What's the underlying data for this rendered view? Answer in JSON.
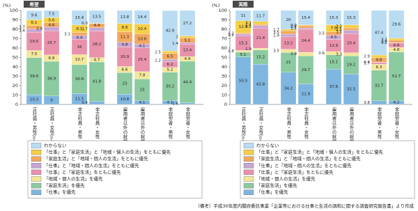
{
  "chart_data": [
    {
      "type": "bar",
      "stacked": true,
      "title": "希望",
      "y_label": "(%)",
      "categories": [
        "正社員・男性(n=1500)",
        "正社員・女性(n=1500)",
        "非正社員・男性",
        "非正社員・女性",
        "雇用者以外の就労者・男性",
        "雇用者以外の就労者・女性",
        "非就労者・男性",
        "非就労者・女性"
      ],
      "ylim": [
        0,
        100
      ],
      "yticks": [
        0,
        10,
        20,
        30,
        40,
        50,
        60,
        70,
        80,
        90,
        100
      ],
      "series": [
        {
          "name": "「仕事」を優先",
          "color": "#7fb6df",
          "values": [
            10.3,
            9.0,
            11.5,
            3.4,
            10.8,
            4.1,
            4.1,
            1.6
          ]
        },
        {
          "name": "「家庭生活」を優先",
          "color": "#8ccaa0",
          "values": [
            39.6,
            36.9,
            30.8,
            41.8,
            23.0,
            23.0,
            30.2,
            44.4
          ]
        },
        {
          "name": "「地域・個人の生活」を優先",
          "color": "#f3e79a",
          "values": [
            7.5,
            6.8,
            10.7,
            4.7,
            6.6,
            7.8,
            5.2,
            4.9
          ]
        },
        {
          "name": "「仕事」と「家庭生活」をともに優先",
          "color": "#e992ac",
          "values": [
            19.5,
            25.7,
            16.0,
            28.2,
            20.9,
            25.4,
            6.2,
            13.4
          ]
        },
        {
          "name": "「仕事」と「地域・個人の生活」をともに優先",
          "color": "#c7a6d2",
          "values": [
            3.4,
            3.9,
            4.4,
            3.7,
            4.8,
            4.1,
            2.2,
            1.4
          ]
        },
        {
          "name": "「家庭生活」と「地域・個人の生活」をともに優先",
          "color": "#f2a860",
          "values": [
            3.7,
            4.6,
            3.1,
            4.4,
            11.3,
            10.8,
            6.5,
            5.1
          ]
        },
        {
          "name": "「仕事」と「家庭生活」と「地域・個人の生活」をともに優先",
          "color": "#f5cf45",
          "values": [
            6.1,
            5.6,
            8.1,
            0.3,
            8.8,
            10.4,
            2.5,
            2.0
          ]
        },
        {
          "name": "わからない",
          "color": "#b9dcf2",
          "values": [
            9.6,
            7.5,
            15.4,
            13.5,
            13.8,
            14.4,
            42.9,
            27.2
          ]
        }
      ]
    },
    {
      "type": "bar",
      "stacked": true,
      "title": "実際",
      "y_label": "(%)",
      "categories": [
        "正社員・男性(n=1500)",
        "正社員・女性(n=1500)",
        "非正社員・男性",
        "非正社員・女性",
        "雇用者以外の就労者・男性",
        "雇用者以外の就労者・女性",
        "非就労者・男性",
        "非就労者・女性"
      ],
      "ylim": [
        0,
        100
      ],
      "yticks": [
        0,
        10,
        20,
        30,
        40,
        50,
        60,
        70,
        80,
        90,
        100
      ],
      "series": [
        {
          "name": "「仕事」を優先",
          "color": "#7fb6df",
          "values": [
            50.5,
            42.8,
            34.2,
            21.9,
            37.6,
            32.5,
            3.8,
            4.2
          ]
        },
        {
          "name": "「家庭生活」を優先",
          "color": "#8ccaa0",
          "values": [
            5.1,
            15.2,
            21.0,
            29.7,
            15.1,
            19.2,
            32.7,
            51.7
          ]
        },
        {
          "name": "「地域・個人の生活」を優先",
          "color": "#f3e79a",
          "values": [
            1.8,
            1.9,
            3.5,
            3.9,
            3.6,
            3.3,
            6.3,
            4.8
          ]
        },
        {
          "name": "「仕事」と「家庭生活」をともに優先",
          "color": "#e992ac",
          "values": [
            15.3,
            21.4,
            13.2,
            24.4,
            12.9,
            20.4,
            1.7,
            4.8
          ]
        },
        {
          "name": "「仕事」と「地域・個人の生活」をともに優先",
          "color": "#c7a6d2",
          "values": [
            2.2,
            2.5,
            2.9,
            1.4,
            4.5,
            3.5,
            0.4,
            0.2
          ]
        },
        {
          "name": "「家庭生活」と「地域・個人の生活」をともに優先",
          "color": "#f2a860",
          "values": [
            1.2,
            1.4,
            3.5,
            2.4,
            3.5,
            2.5,
            4.8,
            2.6
          ]
        },
        {
          "name": "「仕事」と「家庭生活」と「地域・個人の生活」をともに優先",
          "color": "#f5cf45",
          "values": [
            12.9,
            3.1,
            1.7,
            0.9,
            7.5,
            3.3,
            2.9,
            2.1
          ]
        },
        {
          "name": "わからない",
          "color": "#b9dcf2",
          "values": [
            11.0,
            11.7,
            20.0,
            15.4,
            15.3,
            15.3,
            47.4,
            29.6
          ]
        }
      ]
    }
  ],
  "note": "（備考）平成30年度内閣府委託事業「企業等における仕事と生活の調和に関する調査研究報告書」より作成"
}
